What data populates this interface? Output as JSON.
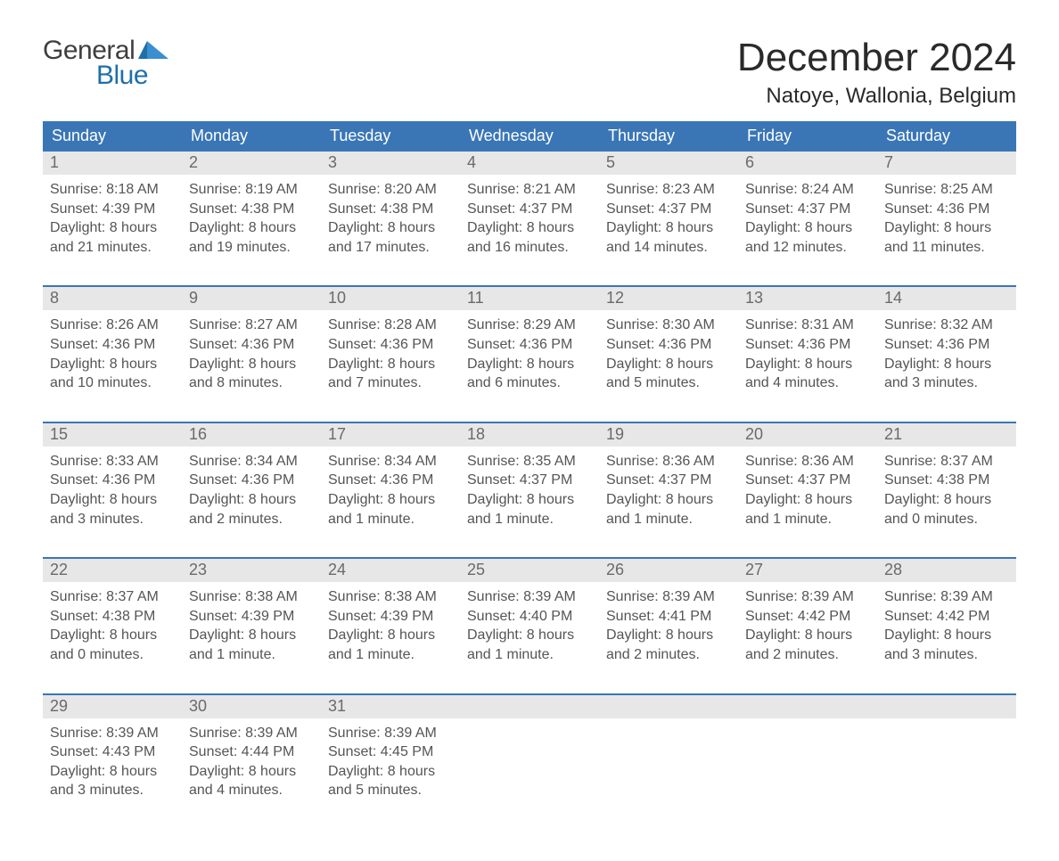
{
  "logo": {
    "text_general": "General",
    "text_blue": "Blue",
    "mark_color": "#1f6fa8"
  },
  "title": "December 2024",
  "subtitle": "Natoye, Wallonia, Belgium",
  "colors": {
    "header_bg": "#3a76b6",
    "header_text": "#ffffff",
    "daynum_bg": "#e7e7e7",
    "daynum_text": "#6a6a6a",
    "row_border": "#3a76b6",
    "cell_text": "#555555",
    "page_bg": "#ffffff"
  },
  "typography": {
    "title_fontsize": 44,
    "subtitle_fontsize": 24,
    "header_fontsize": 18,
    "daynum_fontsize": 18,
    "cell_fontsize": 16,
    "font_family": "Arial, Helvetica, sans-serif"
  },
  "day_names": [
    "Sunday",
    "Monday",
    "Tuesday",
    "Wednesday",
    "Thursday",
    "Friday",
    "Saturday"
  ],
  "weeks": [
    [
      {
        "num": "1",
        "sunrise": "Sunrise: 8:18 AM",
        "sunset": "Sunset: 4:39 PM",
        "d1": "Daylight: 8 hours",
        "d2": "and 21 minutes."
      },
      {
        "num": "2",
        "sunrise": "Sunrise: 8:19 AM",
        "sunset": "Sunset: 4:38 PM",
        "d1": "Daylight: 8 hours",
        "d2": "and 19 minutes."
      },
      {
        "num": "3",
        "sunrise": "Sunrise: 8:20 AM",
        "sunset": "Sunset: 4:38 PM",
        "d1": "Daylight: 8 hours",
        "d2": "and 17 minutes."
      },
      {
        "num": "4",
        "sunrise": "Sunrise: 8:21 AM",
        "sunset": "Sunset: 4:37 PM",
        "d1": "Daylight: 8 hours",
        "d2": "and 16 minutes."
      },
      {
        "num": "5",
        "sunrise": "Sunrise: 8:23 AM",
        "sunset": "Sunset: 4:37 PM",
        "d1": "Daylight: 8 hours",
        "d2": "and 14 minutes."
      },
      {
        "num": "6",
        "sunrise": "Sunrise: 8:24 AM",
        "sunset": "Sunset: 4:37 PM",
        "d1": "Daylight: 8 hours",
        "d2": "and 12 minutes."
      },
      {
        "num": "7",
        "sunrise": "Sunrise: 8:25 AM",
        "sunset": "Sunset: 4:36 PM",
        "d1": "Daylight: 8 hours",
        "d2": "and 11 minutes."
      }
    ],
    [
      {
        "num": "8",
        "sunrise": "Sunrise: 8:26 AM",
        "sunset": "Sunset: 4:36 PM",
        "d1": "Daylight: 8 hours",
        "d2": "and 10 minutes."
      },
      {
        "num": "9",
        "sunrise": "Sunrise: 8:27 AM",
        "sunset": "Sunset: 4:36 PM",
        "d1": "Daylight: 8 hours",
        "d2": "and 8 minutes."
      },
      {
        "num": "10",
        "sunrise": "Sunrise: 8:28 AM",
        "sunset": "Sunset: 4:36 PM",
        "d1": "Daylight: 8 hours",
        "d2": "and 7 minutes."
      },
      {
        "num": "11",
        "sunrise": "Sunrise: 8:29 AM",
        "sunset": "Sunset: 4:36 PM",
        "d1": "Daylight: 8 hours",
        "d2": "and 6 minutes."
      },
      {
        "num": "12",
        "sunrise": "Sunrise: 8:30 AM",
        "sunset": "Sunset: 4:36 PM",
        "d1": "Daylight: 8 hours",
        "d2": "and 5 minutes."
      },
      {
        "num": "13",
        "sunrise": "Sunrise: 8:31 AM",
        "sunset": "Sunset: 4:36 PM",
        "d1": "Daylight: 8 hours",
        "d2": "and 4 minutes."
      },
      {
        "num": "14",
        "sunrise": "Sunrise: 8:32 AM",
        "sunset": "Sunset: 4:36 PM",
        "d1": "Daylight: 8 hours",
        "d2": "and 3 minutes."
      }
    ],
    [
      {
        "num": "15",
        "sunrise": "Sunrise: 8:33 AM",
        "sunset": "Sunset: 4:36 PM",
        "d1": "Daylight: 8 hours",
        "d2": "and 3 minutes."
      },
      {
        "num": "16",
        "sunrise": "Sunrise: 8:34 AM",
        "sunset": "Sunset: 4:36 PM",
        "d1": "Daylight: 8 hours",
        "d2": "and 2 minutes."
      },
      {
        "num": "17",
        "sunrise": "Sunrise: 8:34 AM",
        "sunset": "Sunset: 4:36 PM",
        "d1": "Daylight: 8 hours",
        "d2": "and 1 minute."
      },
      {
        "num": "18",
        "sunrise": "Sunrise: 8:35 AM",
        "sunset": "Sunset: 4:37 PM",
        "d1": "Daylight: 8 hours",
        "d2": "and 1 minute."
      },
      {
        "num": "19",
        "sunrise": "Sunrise: 8:36 AM",
        "sunset": "Sunset: 4:37 PM",
        "d1": "Daylight: 8 hours",
        "d2": "and 1 minute."
      },
      {
        "num": "20",
        "sunrise": "Sunrise: 8:36 AM",
        "sunset": "Sunset: 4:37 PM",
        "d1": "Daylight: 8 hours",
        "d2": "and 1 minute."
      },
      {
        "num": "21",
        "sunrise": "Sunrise: 8:37 AM",
        "sunset": "Sunset: 4:38 PM",
        "d1": "Daylight: 8 hours",
        "d2": "and 0 minutes."
      }
    ],
    [
      {
        "num": "22",
        "sunrise": "Sunrise: 8:37 AM",
        "sunset": "Sunset: 4:38 PM",
        "d1": "Daylight: 8 hours",
        "d2": "and 0 minutes."
      },
      {
        "num": "23",
        "sunrise": "Sunrise: 8:38 AM",
        "sunset": "Sunset: 4:39 PM",
        "d1": "Daylight: 8 hours",
        "d2": "and 1 minute."
      },
      {
        "num": "24",
        "sunrise": "Sunrise: 8:38 AM",
        "sunset": "Sunset: 4:39 PM",
        "d1": "Daylight: 8 hours",
        "d2": "and 1 minute."
      },
      {
        "num": "25",
        "sunrise": "Sunrise: 8:39 AM",
        "sunset": "Sunset: 4:40 PM",
        "d1": "Daylight: 8 hours",
        "d2": "and 1 minute."
      },
      {
        "num": "26",
        "sunrise": "Sunrise: 8:39 AM",
        "sunset": "Sunset: 4:41 PM",
        "d1": "Daylight: 8 hours",
        "d2": "and 2 minutes."
      },
      {
        "num": "27",
        "sunrise": "Sunrise: 8:39 AM",
        "sunset": "Sunset: 4:42 PM",
        "d1": "Daylight: 8 hours",
        "d2": "and 2 minutes."
      },
      {
        "num": "28",
        "sunrise": "Sunrise: 8:39 AM",
        "sunset": "Sunset: 4:42 PM",
        "d1": "Daylight: 8 hours",
        "d2": "and 3 minutes."
      }
    ],
    [
      {
        "num": "29",
        "sunrise": "Sunrise: 8:39 AM",
        "sunset": "Sunset: 4:43 PM",
        "d1": "Daylight: 8 hours",
        "d2": "and 3 minutes."
      },
      {
        "num": "30",
        "sunrise": "Sunrise: 8:39 AM",
        "sunset": "Sunset: 4:44 PM",
        "d1": "Daylight: 8 hours",
        "d2": "and 4 minutes."
      },
      {
        "num": "31",
        "sunrise": "Sunrise: 8:39 AM",
        "sunset": "Sunset: 4:45 PM",
        "d1": "Daylight: 8 hours",
        "d2": "and 5 minutes."
      },
      {
        "empty": true
      },
      {
        "empty": true
      },
      {
        "empty": true
      },
      {
        "empty": true
      }
    ]
  ]
}
